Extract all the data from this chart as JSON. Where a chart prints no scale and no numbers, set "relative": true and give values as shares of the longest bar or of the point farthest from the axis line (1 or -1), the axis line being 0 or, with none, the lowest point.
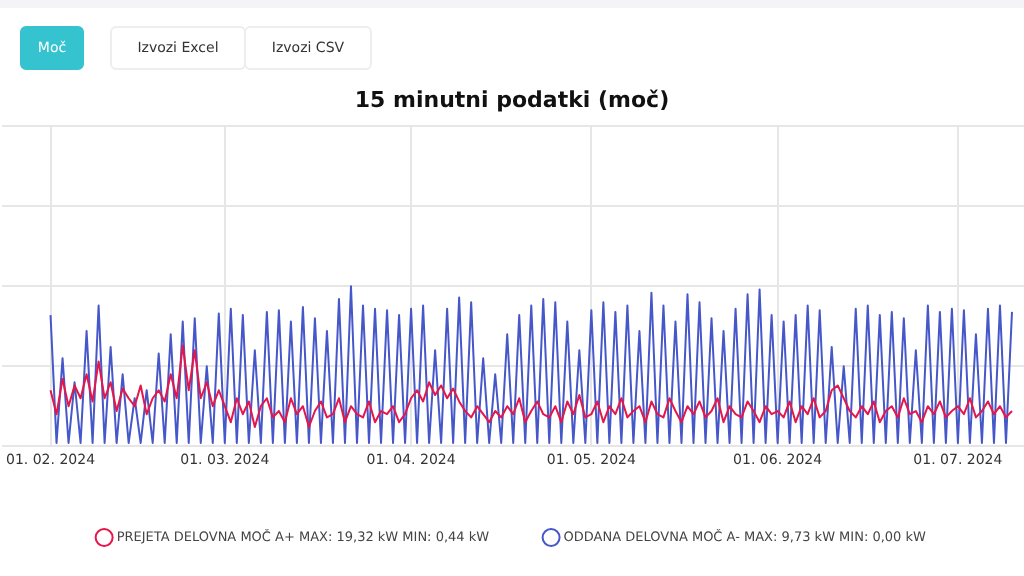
{
  "chart_data": {
    "type": "line",
    "title": "15 minutni podatki (moč)",
    "annotations": [
      "Moč",
      "Izvozi Excel",
      "Izvozi CSV"
    ],
    "relative": true,
    "legend": "bottom",
    "grid": true,
    "marker": "none",
    "x": [
      "2024-02-01",
      "2024-02-02",
      "2024-02-03",
      "2024-02-04",
      "2024-02-05",
      "2024-02-06",
      "2024-02-07",
      "2024-02-08",
      "2024-02-09",
      "2024-02-10",
      "2024-02-11",
      "2024-02-12",
      "2024-02-13",
      "2024-02-14",
      "2024-02-15",
      "2024-02-16",
      "2024-02-17",
      "2024-02-18",
      "2024-02-19",
      "2024-02-20",
      "2024-02-21",
      "2024-02-22",
      "2024-02-23",
      "2024-02-24",
      "2024-02-25",
      "2024-02-26",
      "2024-02-27",
      "2024-02-28",
      "2024-02-29",
      "2024-03-01",
      "2024-03-02",
      "2024-03-03",
      "2024-03-04",
      "2024-03-05",
      "2024-03-06",
      "2024-03-07",
      "2024-03-08",
      "2024-03-09",
      "2024-03-10",
      "2024-03-11",
      "2024-03-12",
      "2024-03-13",
      "2024-03-14",
      "2024-03-15",
      "2024-03-16",
      "2024-03-17",
      "2024-03-18",
      "2024-03-19",
      "2024-03-20",
      "2024-03-21",
      "2024-03-22",
      "2024-03-23",
      "2024-03-24",
      "2024-03-25",
      "2024-03-26",
      "2024-03-27",
      "2024-03-28",
      "2024-03-29",
      "2024-03-30",
      "2024-03-31",
      "2024-04-01",
      "2024-04-02",
      "2024-04-03",
      "2024-04-04",
      "2024-04-05",
      "2024-04-06",
      "2024-04-07",
      "2024-04-08",
      "2024-04-09",
      "2024-04-10",
      "2024-04-11",
      "2024-04-12",
      "2024-04-13",
      "2024-04-14",
      "2024-04-15",
      "2024-04-16",
      "2024-04-17",
      "2024-04-18",
      "2024-04-19",
      "2024-04-20",
      "2024-04-21",
      "2024-04-22",
      "2024-04-23",
      "2024-04-24",
      "2024-04-25",
      "2024-04-26",
      "2024-04-27",
      "2024-04-28",
      "2024-04-29",
      "2024-04-30",
      "2024-05-01",
      "2024-05-02",
      "2024-05-03",
      "2024-05-04",
      "2024-05-05",
      "2024-05-06",
      "2024-05-07",
      "2024-05-08",
      "2024-05-09",
      "2024-05-10",
      "2024-05-11",
      "2024-05-12",
      "2024-05-13",
      "2024-05-14",
      "2024-05-15",
      "2024-05-16",
      "2024-05-17",
      "2024-05-18",
      "2024-05-19",
      "2024-05-20",
      "2024-05-21",
      "2024-05-22",
      "2024-05-23",
      "2024-05-24",
      "2024-05-25",
      "2024-05-26",
      "2024-05-27",
      "2024-05-28",
      "2024-05-29",
      "2024-05-30",
      "2024-05-31",
      "2024-06-01",
      "2024-06-02",
      "2024-06-03",
      "2024-06-04",
      "2024-06-05",
      "2024-06-06",
      "2024-06-07",
      "2024-06-08",
      "2024-06-09",
      "2024-06-10",
      "2024-06-11",
      "2024-06-12",
      "2024-06-13",
      "2024-06-14",
      "2024-06-15",
      "2024-06-16",
      "2024-06-17",
      "2024-06-18",
      "2024-06-19",
      "2024-06-20",
      "2024-06-21",
      "2024-06-22",
      "2024-06-23",
      "2024-06-24",
      "2024-06-25",
      "2024-06-26",
      "2024-06-27",
      "2024-06-28",
      "2024-06-29",
      "2024-06-30",
      "2024-07-01",
      "2024-07-02",
      "2024-07-03",
      "2024-07-04",
      "2024-07-05",
      "2024-07-06",
      "2024-07-07",
      "2024-07-08",
      "2024-07-09",
      "2024-07-10"
    ],
    "xlim": [
      "2024-01-24",
      "2024-07-12"
    ],
    "xticks": [
      {
        "value": "2024-02-01",
        "label": "01. 02. 2024"
      },
      {
        "value": "2024-03-01",
        "label": "01. 03. 2024"
      },
      {
        "value": "2024-04-01",
        "label": "01. 04. 2024"
      },
      {
        "value": "2024-05-01",
        "label": "01. 05. 2024"
      },
      {
        "value": "2024-06-01",
        "label": "01. 06. 2024"
      },
      {
        "value": "2024-07-01",
        "label": "01. 07. 2024"
      }
    ],
    "series": [
      {
        "name": "PREJETA DELOVNA MOČ A+ MAX: 19,32 kW MIN: 0,44 kW",
        "color": "#e5164a",
        "values": [
          0.35,
          0.2,
          0.42,
          0.25,
          0.38,
          0.3,
          0.45,
          0.28,
          0.53,
          0.3,
          0.4,
          0.22,
          0.36,
          0.3,
          0.25,
          0.38,
          0.2,
          0.3,
          0.35,
          0.28,
          0.45,
          0.3,
          0.63,
          0.35,
          0.6,
          0.3,
          0.4,
          0.25,
          0.35,
          0.25,
          0.15,
          0.3,
          0.2,
          0.28,
          0.12,
          0.25,
          0.3,
          0.18,
          0.22,
          0.15,
          0.3,
          0.2,
          0.25,
          0.12,
          0.22,
          0.28,
          0.18,
          0.2,
          0.3,
          0.15,
          0.25,
          0.2,
          0.18,
          0.28,
          0.15,
          0.22,
          0.2,
          0.25,
          0.15,
          0.2,
          0.3,
          0.35,
          0.28,
          0.4,
          0.32,
          0.38,
          0.3,
          0.36,
          0.28,
          0.22,
          0.18,
          0.25,
          0.2,
          0.15,
          0.22,
          0.18,
          0.25,
          0.2,
          0.3,
          0.15,
          0.22,
          0.28,
          0.2,
          0.18,
          0.25,
          0.15,
          0.28,
          0.2,
          0.32,
          0.18,
          0.2,
          0.28,
          0.15,
          0.25,
          0.2,
          0.3,
          0.18,
          0.22,
          0.25,
          0.15,
          0.28,
          0.2,
          0.18,
          0.3,
          0.22,
          0.15,
          0.25,
          0.2,
          0.28,
          0.18,
          0.22,
          0.3,
          0.15,
          0.25,
          0.2,
          0.18,
          0.28,
          0.22,
          0.15,
          0.25,
          0.2,
          0.22,
          0.18,
          0.28,
          0.15,
          0.25,
          0.2,
          0.3,
          0.18,
          0.22,
          0.35,
          0.38,
          0.3,
          0.22,
          0.18,
          0.25,
          0.2,
          0.28,
          0.15,
          0.22,
          0.25,
          0.18,
          0.3,
          0.2,
          0.22,
          0.15,
          0.25,
          0.2,
          0.28,
          0.18,
          0.22,
          0.25,
          0.2,
          0.3,
          0.18,
          0.22,
          0.28,
          0.2,
          0.25,
          0.18,
          0.22
        ]
      },
      {
        "name": "ODDANA DELOVNA MOČ A- MAX: 9,73 kW MIN: 0,00 kW",
        "color": "#4557c9",
        "values": [
          0.82,
          0.02,
          0.55,
          0.02,
          0.4,
          0.02,
          0.72,
          0.02,
          0.88,
          0.02,
          0.62,
          0.02,
          0.45,
          0.02,
          0.3,
          0.02,
          0.35,
          0.02,
          0.58,
          0.02,
          0.7,
          0.02,
          0.78,
          0.02,
          0.8,
          0.02,
          0.5,
          0.02,
          0.83,
          0.02,
          0.86,
          0.02,
          0.82,
          0.02,
          0.6,
          0.02,
          0.84,
          0.02,
          0.85,
          0.02,
          0.78,
          0.02,
          0.87,
          0.02,
          0.8,
          0.02,
          0.72,
          0.02,
          0.92,
          0.02,
          1.0,
          0.02,
          0.88,
          0.02,
          0.86,
          0.02,
          0.85,
          0.02,
          0.82,
          0.02,
          0.86,
          0.02,
          0.88,
          0.02,
          0.6,
          0.02,
          0.86,
          0.02,
          0.93,
          0.02,
          0.9,
          0.02,
          0.55,
          0.02,
          0.45,
          0.02,
          0.7,
          0.02,
          0.82,
          0.02,
          0.88,
          0.02,
          0.92,
          0.02,
          0.9,
          0.02,
          0.78,
          0.02,
          0.6,
          0.02,
          0.85,
          0.02,
          0.9,
          0.02,
          0.84,
          0.02,
          0.88,
          0.02,
          0.72,
          0.02,
          0.96,
          0.02,
          0.88,
          0.02,
          0.78,
          0.02,
          0.95,
          0.02,
          0.9,
          0.02,
          0.8,
          0.02,
          0.72,
          0.02,
          0.86,
          0.02,
          0.95,
          0.02,
          0.98,
          0.02,
          0.82,
          0.02,
          0.78,
          0.02,
          0.82,
          0.02,
          0.88,
          0.02,
          0.85,
          0.02,
          0.62,
          0.02,
          0.5,
          0.02,
          0.86,
          0.02,
          0.88,
          0.02,
          0.82,
          0.02,
          0.84,
          0.02,
          0.8,
          0.02,
          0.6,
          0.02,
          0.88,
          0.02,
          0.84,
          0.02,
          0.86,
          0.02,
          0.85,
          0.02,
          0.7,
          0.02,
          0.86,
          0.02,
          0.88,
          0.02,
          0.84
        ]
      }
    ]
  }
}
